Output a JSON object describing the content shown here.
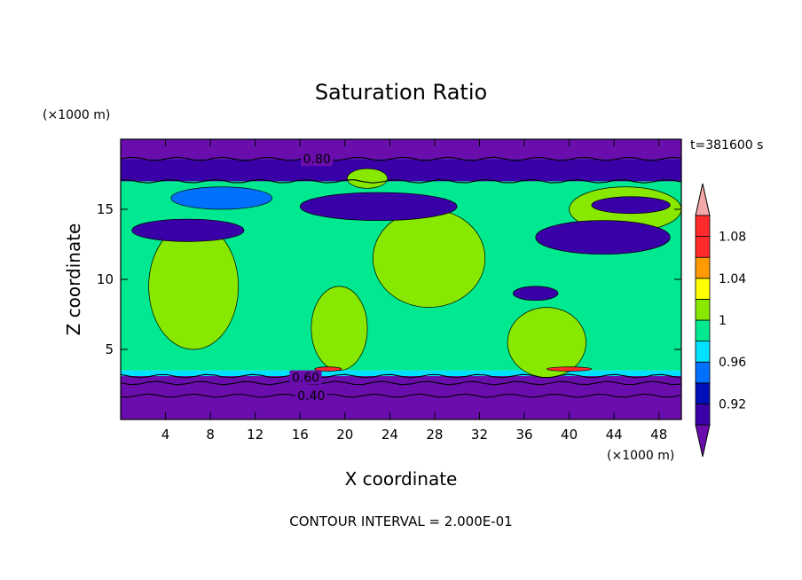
{
  "chart_data": {
    "type": "heatmap",
    "title": "Saturation Ratio",
    "xlabel": "X coordinate",
    "ylabel": "Z coordinate",
    "x_unit": "(×1000 m)",
    "y_unit": "(×1000 m)",
    "time_label": "t=381600 s",
    "footnote": "CONTOUR INTERVAL = 2.000E-01",
    "xlim": [
      0,
      50
    ],
    "ylim": [
      0,
      20
    ],
    "x_ticks": [
      4,
      8,
      12,
      16,
      20,
      24,
      28,
      32,
      36,
      40,
      44,
      48
    ],
    "y_ticks": [
      5,
      10,
      15
    ],
    "colorbar": {
      "levels": [
        0.9,
        0.92,
        0.94,
        0.96,
        0.98,
        1.0,
        1.02,
        1.04,
        1.06,
        1.08,
        1.1
      ],
      "tick_labels": [
        "0.92",
        "0.96",
        "1",
        "1.04",
        "1.08"
      ],
      "tick_values": [
        0.92,
        0.96,
        1.0,
        1.04,
        1.08
      ],
      "colors": [
        "#6a0dad",
        "#3a00a8",
        "#0010b8",
        "#0070ff",
        "#00e0ff",
        "#00e890",
        "#88e800",
        "#ffff00",
        "#ff9a00",
        "#ff2a2a",
        "#f4a8a8"
      ]
    },
    "bands": [
      {
        "z0": 0.0,
        "z1": 3.1,
        "value": 0.4
      },
      {
        "z0": 3.1,
        "z1": 3.5,
        "value": 0.97
      },
      {
        "z0": 3.5,
        "z1": 17.0,
        "value": 0.99
      },
      {
        "z0": 17.0,
        "z1": 18.6,
        "value": 0.91
      },
      {
        "z0": 18.6,
        "z1": 20.0,
        "value": 0.8
      }
    ],
    "regions": [
      {
        "value": 1.01,
        "x": 6.5,
        "z": 9.5,
        "rx": 4.0,
        "rz": 4.5
      },
      {
        "value": 1.01,
        "x": 19.5,
        "z": 6.5,
        "rx": 2.5,
        "rz": 3.0
      },
      {
        "value": 1.01,
        "x": 27.5,
        "z": 11.5,
        "rx": 5.0,
        "rz": 3.5
      },
      {
        "value": 1.01,
        "x": 38.0,
        "z": 5.5,
        "rx": 3.5,
        "rz": 2.5
      },
      {
        "value": 1.01,
        "x": 45.0,
        "z": 15.0,
        "rx": 5.0,
        "rz": 1.6
      },
      {
        "value": 1.01,
        "x": 22.0,
        "z": 17.2,
        "rx": 1.8,
        "rz": 0.7
      },
      {
        "value": 0.95,
        "x": 9.0,
        "z": 15.8,
        "rx": 4.5,
        "rz": 0.8
      },
      {
        "value": 0.91,
        "x": 23.0,
        "z": 15.2,
        "rx": 7.0,
        "rz": 1.0
      },
      {
        "value": 0.91,
        "x": 6.0,
        "z": 13.5,
        "rx": 5.0,
        "rz": 0.8
      },
      {
        "value": 0.91,
        "x": 43.0,
        "z": 13.0,
        "rx": 6.0,
        "rz": 1.2
      },
      {
        "value": 0.91,
        "x": 45.5,
        "z": 15.3,
        "rx": 3.5,
        "rz": 0.6
      },
      {
        "value": 0.91,
        "x": 37.0,
        "z": 9.0,
        "rx": 2.0,
        "rz": 0.5
      },
      {
        "value": 1.07,
        "x": 18.5,
        "z": 3.6,
        "rx": 1.2,
        "rz": 0.15
      },
      {
        "value": 1.07,
        "x": 40.0,
        "z": 3.6,
        "rx": 2.0,
        "rz": 0.15
      }
    ],
    "contour_labels": [
      {
        "text": "0.80",
        "x": 17.5,
        "z": 18.6
      },
      {
        "text": "0.60",
        "x": 16.5,
        "z": 3.0
      },
      {
        "text": "0.40",
        "x": 17.0,
        "z": 1.7
      }
    ],
    "contour_lines_z": [
      18.6,
      17.0,
      3.1,
      2.6,
      1.7
    ]
  }
}
